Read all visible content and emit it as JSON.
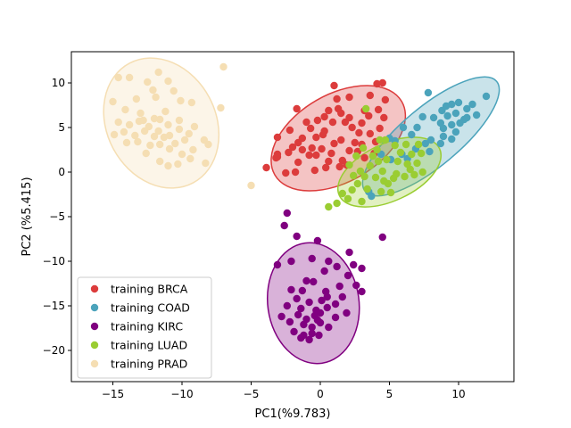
{
  "chart_data": {
    "type": "scatter",
    "title": "",
    "xlabel": "PC1(%9.783)",
    "ylabel": "PC2 (%5.415)",
    "xlim": [
      -18,
      14
    ],
    "ylim": [
      -23.5,
      13.5
    ],
    "xticks": [
      -15,
      -10,
      -5,
      0,
      5,
      10
    ],
    "yticks": [
      -20,
      -15,
      -10,
      -5,
      0,
      5,
      10
    ],
    "grid": false,
    "legend_position": "lower-left",
    "series": [
      {
        "name": "training BRCA",
        "color": "#dc3c3c",
        "ellipse": {
          "cx": 1.3,
          "cy": 3.8,
          "rx": 5.3,
          "ry": 4.9,
          "angle": 30
        },
        "points": [
          [
            -1.7,
            7.1
          ],
          [
            0.3,
            6.2
          ],
          [
            1.3,
            7.1
          ],
          [
            1.2,
            8.2
          ],
          [
            2.1,
            8.4
          ],
          [
            1.0,
            9.7
          ],
          [
            1.8,
            5.6
          ],
          [
            2.1,
            6.1
          ],
          [
            0.2,
            4.2
          ],
          [
            -1.0,
            5.6
          ],
          [
            -1.3,
            3.8
          ],
          [
            -0.3,
            3.9
          ],
          [
            0.1,
            2.6
          ],
          [
            -0.8,
            1.9
          ],
          [
            -1.6,
            1.1
          ],
          [
            -0.3,
            1.9
          ],
          [
            1.0,
            3.2
          ],
          [
            1.5,
            3.6
          ],
          [
            0.3,
            4.6
          ],
          [
            -0.7,
            4.9
          ],
          [
            -1.6,
            3.3
          ],
          [
            -2.2,
            4.7
          ],
          [
            -2.0,
            2.8
          ],
          [
            -3.1,
            1.7
          ],
          [
            -3.2,
            1.6
          ],
          [
            -3.1,
            2.0
          ],
          [
            -2.5,
            -0.1
          ],
          [
            -1.8,
            0.0
          ],
          [
            -1.3,
            2.5
          ],
          [
            -0.4,
            0.2
          ],
          [
            0.6,
            1.2
          ],
          [
            1.4,
            0.6
          ],
          [
            1.6,
            1.3
          ],
          [
            2.1,
            2.4
          ],
          [
            2.7,
            2.3
          ],
          [
            3.0,
            3.1
          ],
          [
            3.2,
            1.6
          ],
          [
            3.9,
            2.1
          ],
          [
            4.0,
            3.4
          ],
          [
            3.6,
            4.3
          ],
          [
            3.0,
            5.5
          ],
          [
            3.5,
            6.3
          ],
          [
            3.2,
            6.9
          ],
          [
            3.6,
            8.6
          ],
          [
            4.1,
            9.9
          ],
          [
            4.5,
            10.0
          ],
          [
            4.7,
            8.1
          ],
          [
            4.2,
            7.0
          ],
          [
            4.6,
            6.1
          ],
          [
            4.3,
            4.9
          ],
          [
            2.3,
            5.0
          ],
          [
            2.8,
            4.4
          ],
          [
            0.9,
            5.6
          ],
          [
            1.5,
            6.6
          ],
          [
            -0.2,
            5.8
          ],
          [
            0.6,
            6.9
          ],
          [
            -0.6,
            2.7
          ],
          [
            0.4,
            0.5
          ],
          [
            1.9,
            0.8
          ],
          [
            -3.9,
            0.5
          ],
          [
            -3.1,
            3.9
          ],
          [
            -2.3,
            2.2
          ],
          [
            0.8,
            2.1
          ],
          [
            2.5,
            3.3
          ]
        ]
      },
      {
        "name": "training COAD",
        "color": "#4ba3bb",
        "ellipse": {
          "cx": 8.0,
          "cy": 4.0,
          "rx": 6.2,
          "ry": 3.3,
          "angle": 40
        },
        "points": [
          [
            7.8,
            8.9
          ],
          [
            8.2,
            6.1
          ],
          [
            8.8,
            6.9
          ],
          [
            9.5,
            7.6
          ],
          [
            10.0,
            7.8
          ],
          [
            10.6,
            7.1
          ],
          [
            11.0,
            7.6
          ],
          [
            12.0,
            8.5
          ],
          [
            11.3,
            6.4
          ],
          [
            10.4,
            5.9
          ],
          [
            9.8,
            6.6
          ],
          [
            9.2,
            6.3
          ],
          [
            8.7,
            5.5
          ],
          [
            7.4,
            6.2
          ],
          [
            7.0,
            5.0
          ],
          [
            8.9,
            4.9
          ],
          [
            9.5,
            5.3
          ],
          [
            10.1,
            5.5
          ],
          [
            9.8,
            4.5
          ],
          [
            8.9,
            4.0
          ],
          [
            8.0,
            3.6
          ],
          [
            7.6,
            3.2
          ],
          [
            8.7,
            3.2
          ],
          [
            9.5,
            3.7
          ],
          [
            7.9,
            2.3
          ],
          [
            6.9,
            2.6
          ],
          [
            6.6,
            4.2
          ],
          [
            5.9,
            2.0
          ],
          [
            6.3,
            1.5
          ],
          [
            5.1,
            1.4
          ],
          [
            4.4,
            2.0
          ],
          [
            5.4,
            3.5
          ],
          [
            5.0,
            3.8
          ],
          [
            3.7,
            -2.7
          ],
          [
            3.5,
            -2.2
          ],
          [
            10.6,
            6.1
          ],
          [
            9.1,
            7.4
          ],
          [
            6.0,
            5.0
          ]
        ]
      },
      {
        "name": "training KIRC",
        "color": "#800080",
        "ellipse": {
          "cx": -0.5,
          "cy": -14.7,
          "rx": 3.3,
          "ry": 6.8,
          "angle": 8
        },
        "points": [
          [
            -2.4,
            -4.6
          ],
          [
            -1.7,
            -7.2
          ],
          [
            -2.6,
            -6.0
          ],
          [
            -0.2,
            -7.7
          ],
          [
            -2.1,
            -10.0
          ],
          [
            -3.1,
            -10.4
          ],
          [
            -0.6,
            -9.7
          ],
          [
            0.3,
            -11.1
          ],
          [
            1.2,
            -10.6
          ],
          [
            2.1,
            -9.0
          ],
          [
            2.4,
            -10.4
          ],
          [
            3.0,
            -10.8
          ],
          [
            2.0,
            -11.6
          ],
          [
            2.6,
            -12.7
          ],
          [
            3.0,
            -13.4
          ],
          [
            1.4,
            -12.8
          ],
          [
            0.4,
            -13.4
          ],
          [
            -0.5,
            -12.3
          ],
          [
            -1.3,
            -13.3
          ],
          [
            -2.1,
            -13.2
          ],
          [
            -1.7,
            -14.2
          ],
          [
            -0.8,
            -14.6
          ],
          [
            0.1,
            -14.4
          ],
          [
            0.5,
            -14.0
          ],
          [
            1.1,
            -14.8
          ],
          [
            1.6,
            -14.0
          ],
          [
            1.9,
            -15.8
          ],
          [
            1.1,
            -16.3
          ],
          [
            0.5,
            -15.2
          ],
          [
            -0.3,
            -15.5
          ],
          [
            -1.4,
            -15.3
          ],
          [
            -2.4,
            -15.0
          ],
          [
            -2.8,
            -16.2
          ],
          [
            -2.2,
            -16.8
          ],
          [
            -1.6,
            -16.0
          ],
          [
            -1.0,
            -16.5
          ],
          [
            -0.4,
            -16.1
          ],
          [
            0.0,
            -16.9
          ],
          [
            -0.6,
            -17.4
          ],
          [
            -1.2,
            -17.1
          ],
          [
            -1.9,
            -17.9
          ],
          [
            -1.2,
            -18.3
          ],
          [
            -0.6,
            -18.1
          ],
          [
            -0.1,
            -18.3
          ],
          [
            -1.4,
            -18.6
          ],
          [
            -0.8,
            -18.8
          ],
          [
            -0.2,
            -16.6
          ],
          [
            0.6,
            -17.4
          ],
          [
            -1.0,
            -12.2
          ],
          [
            0.6,
            -10.0
          ],
          [
            4.5,
            -7.3
          ],
          [
            0.0,
            -15.8
          ]
        ]
      },
      {
        "name": "training LUAD",
        "color": "#9acd32",
        "ellipse": {
          "cx": 5.0,
          "cy": 0.0,
          "rx": 4.0,
          "ry": 3.2,
          "angle": 25
        },
        "points": [
          [
            3.3,
            7.1
          ],
          [
            4.3,
            3.6
          ],
          [
            4.7,
            3.6
          ],
          [
            5.4,
            3.0
          ],
          [
            6.2,
            3.1
          ],
          [
            7.1,
            3.1
          ],
          [
            6.6,
            2.0
          ],
          [
            7.3,
            2.1
          ],
          [
            4.1,
            2.5
          ],
          [
            3.1,
            2.7
          ],
          [
            2.6,
            1.8
          ],
          [
            2.1,
            0.8
          ],
          [
            2.9,
            0.1
          ],
          [
            3.6,
            0.7
          ],
          [
            4.2,
            1.2
          ],
          [
            4.8,
            1.4
          ],
          [
            5.6,
            1.2
          ],
          [
            6.3,
            0.9
          ],
          [
            7.0,
            1.0
          ],
          [
            7.4,
            0.0
          ],
          [
            6.8,
            -0.3
          ],
          [
            6.1,
            -0.5
          ],
          [
            5.3,
            -0.7
          ],
          [
            4.6,
            -1.0
          ],
          [
            4.0,
            -0.6
          ],
          [
            3.2,
            -0.5
          ],
          [
            2.7,
            -1.3
          ],
          [
            2.3,
            -2.0
          ],
          [
            1.6,
            -2.4
          ],
          [
            2.0,
            -3.0
          ],
          [
            3.0,
            -3.3
          ],
          [
            3.4,
            -1.9
          ],
          [
            4.4,
            -2.2
          ],
          [
            5.1,
            -2.3
          ],
          [
            4.9,
            -1.3
          ],
          [
            1.2,
            -3.5
          ],
          [
            0.6,
            -3.9
          ],
          [
            5.5,
            -0.2
          ],
          [
            6.5,
            0.3
          ],
          [
            3.8,
            1.8
          ],
          [
            2.4,
            -0.4
          ],
          [
            4.5,
            0.1
          ],
          [
            5.8,
            2.2
          ]
        ]
      },
      {
        "name": "training PRAD",
        "color": "#f5deb3",
        "ellipse": {
          "cx": -11.5,
          "cy": 5.5,
          "rx": 4.9,
          "ry": 6.1,
          "angle": -62
        },
        "points": [
          [
            -14.6,
            10.6
          ],
          [
            -13.8,
            10.6
          ],
          [
            -12.5,
            10.1
          ],
          [
            -12.1,
            9.2
          ],
          [
            -11.0,
            10.2
          ],
          [
            -10.6,
            9.1
          ],
          [
            -11.7,
            11.2
          ],
          [
            -7.0,
            11.8
          ],
          [
            -13.3,
            8.2
          ],
          [
            -11.9,
            8.4
          ],
          [
            -10.1,
            8.0
          ],
          [
            -9.3,
            7.8
          ],
          [
            -15.0,
            7.9
          ],
          [
            -14.1,
            7.0
          ],
          [
            -13.0,
            6.6
          ],
          [
            -12.0,
            6.0
          ],
          [
            -11.2,
            6.8
          ],
          [
            -10.2,
            5.8
          ],
          [
            -9.1,
            5.1
          ],
          [
            -7.2,
            7.2
          ],
          [
            -14.6,
            5.6
          ],
          [
            -13.8,
            5.3
          ],
          [
            -13.1,
            5.7
          ],
          [
            -12.4,
            5.1
          ],
          [
            -11.7,
            4.6
          ],
          [
            -11.0,
            5.3
          ],
          [
            -10.2,
            4.8
          ],
          [
            -9.5,
            4.3
          ],
          [
            -14.9,
            4.2
          ],
          [
            -14.2,
            4.5
          ],
          [
            -13.4,
            4.1
          ],
          [
            -12.7,
            4.6
          ],
          [
            -12.0,
            4.0
          ],
          [
            -11.3,
            3.9
          ],
          [
            -10.5,
            3.2
          ],
          [
            -9.8,
            3.6
          ],
          [
            -14.0,
            3.3
          ],
          [
            -13.2,
            3.4
          ],
          [
            -12.3,
            3.0
          ],
          [
            -11.6,
            3.1
          ],
          [
            -10.9,
            2.6
          ],
          [
            -10.0,
            2.0
          ],
          [
            -9.2,
            2.5
          ],
          [
            -8.4,
            3.6
          ],
          [
            -8.1,
            3.1
          ],
          [
            -12.6,
            2.1
          ],
          [
            -11.6,
            1.2
          ],
          [
            -11.0,
            0.7
          ],
          [
            -10.3,
            0.9
          ],
          [
            -9.4,
            1.5
          ],
          [
            -8.3,
            1.0
          ],
          [
            -12.8,
            5.8
          ],
          [
            -11.6,
            5.9
          ],
          [
            -10.9,
            4.1
          ],
          [
            -5.0,
            -1.5
          ]
        ]
      }
    ]
  }
}
